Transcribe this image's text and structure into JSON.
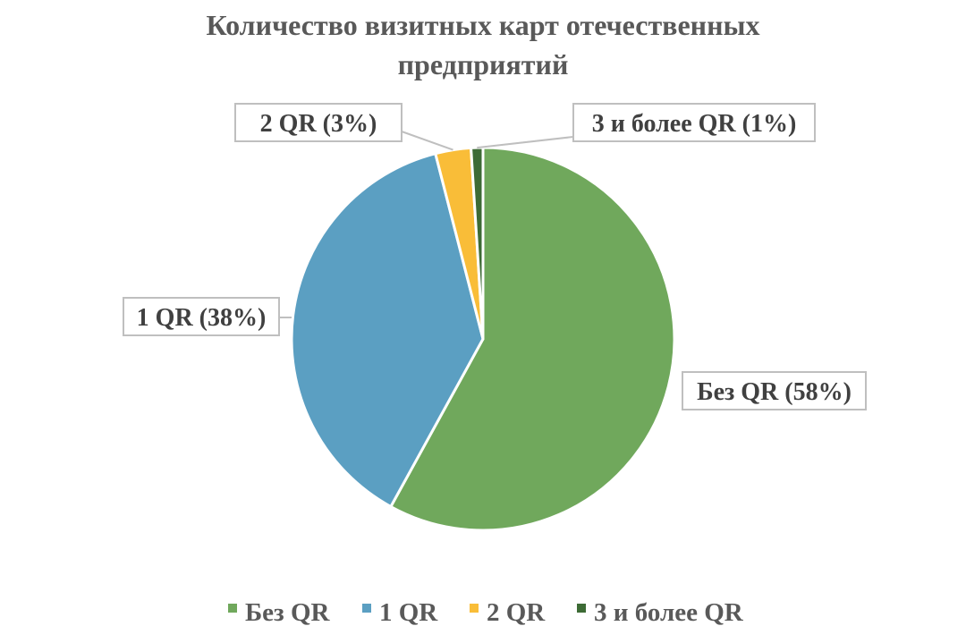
{
  "chart_data": {
    "type": "pie",
    "title": [
      "Количество визитных карт отечественных",
      "предприятий"
    ],
    "categories": [
      "Без QR",
      "1 QR",
      "2 QR",
      "3 и более QR"
    ],
    "values": [
      58,
      38,
      3,
      1
    ],
    "unit": "%",
    "colors": [
      "#70A85C",
      "#5B9FC2",
      "#F9BD38",
      "#3D6B35"
    ],
    "data_labels": [
      "Без QR (58%)",
      "1 QR (38%)",
      "2 QR (3%)",
      "3 и более QR (1%)"
    ],
    "legend": {
      "position": "bottom",
      "items": [
        "Без QR",
        "1 QR",
        "2 QR",
        "3 и более QR"
      ]
    }
  }
}
